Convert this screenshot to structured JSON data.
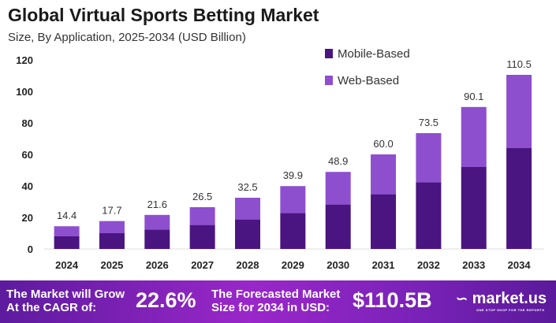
{
  "chart_data": {
    "type": "stacked-bar",
    "title": "Global Virtual Sports Betting Market",
    "subtitle": "Size, By Application, 2025-2034 (USD Billion)",
    "categories": [
      "2024",
      "2025",
      "2026",
      "2027",
      "2028",
      "2029",
      "2030",
      "2031",
      "2032",
      "2033",
      "2034"
    ],
    "totals": [
      "14.4",
      "17.7",
      "21.6",
      "26.5",
      "32.5",
      "39.9",
      "48.9",
      "60.0",
      "73.5",
      "90.1",
      "110.5"
    ],
    "series": [
      {
        "name": "Mobile-Based",
        "color": "#4a1580",
        "values": [
          8.0,
          10.0,
          12.3,
          15.2,
          18.7,
          22.8,
          28.2,
          34.7,
          42.3,
          52.0,
          64.0
        ]
      },
      {
        "name": "Web-Based",
        "color": "#8e4fcf",
        "values": [
          6.4,
          7.7,
          9.3,
          11.3,
          13.8,
          17.1,
          20.7,
          25.3,
          31.2,
          38.1,
          46.5
        ]
      }
    ],
    "ylim": [
      0,
      120
    ],
    "yticks": [
      "0",
      "20",
      "40",
      "60",
      "80",
      "100",
      "120"
    ],
    "grid": false,
    "legend": "top-right"
  },
  "footer": {
    "cagr_label_1": "The Market will Grow",
    "cagr_label_2": "At the CAGR of:",
    "cagr_value": "22.6%",
    "forecast_label_1": "The Forecasted Market",
    "forecast_label_2": "Size for 2034 in USD:",
    "forecast_value": "$110.5B",
    "brand": "market.us",
    "brand_tagline": "ONE STOP SHOP FOR THE REPORTS"
  }
}
